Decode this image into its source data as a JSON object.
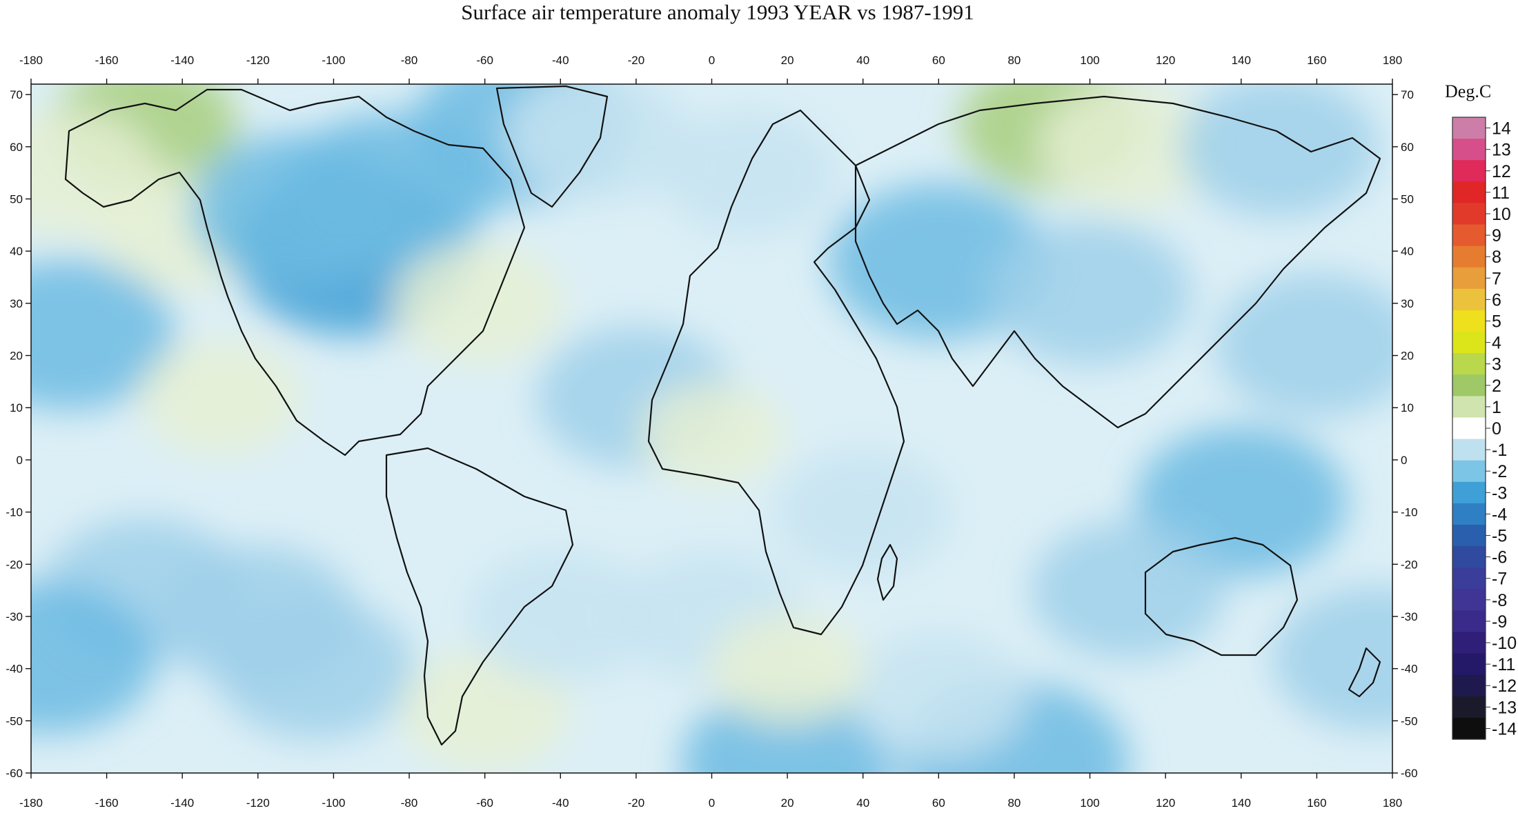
{
  "title": "Surface air temperature anomaly 1993 YEAR vs 1987-1991",
  "map": {
    "lon_ticks": [
      "-180",
      "-160",
      "-140",
      "-120",
      "-100",
      "-80",
      "-60",
      "-40",
      "-20",
      "0",
      "20",
      "40",
      "60",
      "80",
      "100",
      "120",
      "140",
      "160",
      "180"
    ],
    "lat_ticks": [
      "70",
      "60",
      "50",
      "40",
      "30",
      "20",
      "10",
      "0",
      "-10",
      "-20",
      "-30",
      "-40",
      "-50",
      "-60"
    ],
    "lon_range": [
      -180,
      180
    ],
    "lat_range": [
      -60,
      72
    ],
    "anomalies": [
      {
        "lon": -150,
        "lat": 64,
        "value": 1.2
      },
      {
        "lon": -170,
        "lat": 55,
        "value": 1.0
      },
      {
        "lon": -140,
        "lat": 44,
        "value": 0.8
      },
      {
        "lon": -95,
        "lat": 40,
        "value": -2.4
      },
      {
        "lon": -110,
        "lat": 48,
        "value": -1.8
      },
      {
        "lon": -85,
        "lat": 52,
        "value": -1.8
      },
      {
        "lon": -50,
        "lat": 64,
        "value": -2.0
      },
      {
        "lon": -62,
        "lat": 30,
        "value": 0.8
      },
      {
        "lon": -170,
        "lat": 24,
        "value": -1.8
      },
      {
        "lon": -150,
        "lat": -25,
        "value": -1.6
      },
      {
        "lon": -120,
        "lat": -30,
        "value": -1.5
      },
      {
        "lon": -175,
        "lat": -38,
        "value": -1.8
      },
      {
        "lon": -105,
        "lat": -40,
        "value": -1.5
      },
      {
        "lon": -130,
        "lat": 12,
        "value": 0.6
      },
      {
        "lon": -60,
        "lat": -48,
        "value": 0.8
      },
      {
        "lon": 60,
        "lat": 38,
        "value": -2.0
      },
      {
        "lon": 100,
        "lat": 32,
        "value": -1.6
      },
      {
        "lon": 90,
        "lat": 64,
        "value": 1.2
      },
      {
        "lon": 110,
        "lat": 60,
        "value": 1.0
      },
      {
        "lon": 150,
        "lat": 60,
        "value": -1.5
      },
      {
        "lon": 160,
        "lat": 22,
        "value": -1.6
      },
      {
        "lon": 140,
        "lat": -8,
        "value": -1.8
      },
      {
        "lon": 110,
        "lat": -25,
        "value": -1.4
      },
      {
        "lon": 175,
        "lat": -38,
        "value": -1.6
      },
      {
        "lon": 80,
        "lat": -58,
        "value": -2.2
      },
      {
        "lon": 20,
        "lat": -58,
        "value": -1.8
      },
      {
        "lon": -20,
        "lat": 12,
        "value": -1.5
      },
      {
        "lon": 0,
        "lat": -30,
        "value": -1.2
      },
      {
        "lon": 40,
        "lat": -10,
        "value": -1.0
      },
      {
        "lon": 60,
        "lat": -45,
        "value": -1.0
      },
      {
        "lon": 20,
        "lat": -40,
        "value": 0.5
      },
      {
        "lon": -30,
        "lat": 62,
        "value": -1.2
      },
      {
        "lon": 10,
        "lat": 55,
        "value": -1.0
      },
      {
        "lon": 0,
        "lat": 5,
        "value": 0.2
      },
      {
        "lon": -40,
        "lat": -30,
        "value": -1.2
      }
    ]
  },
  "colorbar": {
    "title": "Deg.C",
    "labels": [
      "14",
      "13",
      "12",
      "11",
      "10",
      "9",
      "8",
      "7",
      "6",
      "5",
      "4",
      "3",
      "2",
      "1",
      "0",
      "-1",
      "-2",
      "-3",
      "-4",
      "-5",
      "-6",
      "-7",
      "-8",
      "-9",
      "-10",
      "-11",
      "-12",
      "-13",
      "-14"
    ],
    "colors": [
      "#cc7ea8",
      "#d64f8a",
      "#e02a5a",
      "#e02626",
      "#e23a2a",
      "#e55a2e",
      "#e57c30",
      "#e89e3a",
      "#ecc23d",
      "#eee01c",
      "#dce51a",
      "#b9d84b",
      "#9ec966",
      "#cfe4ae",
      "#ffffff",
      "#bfe1ef",
      "#7cc5e6",
      "#3ea0d6",
      "#2f7fc4",
      "#2a5fae",
      "#2f4a9e",
      "#3b3d9a",
      "#403494",
      "#3a2a8a",
      "#2f1f78",
      "#241868",
      "#1e1a4e",
      "#1a1a2a",
      "#0e0e0e"
    ]
  }
}
